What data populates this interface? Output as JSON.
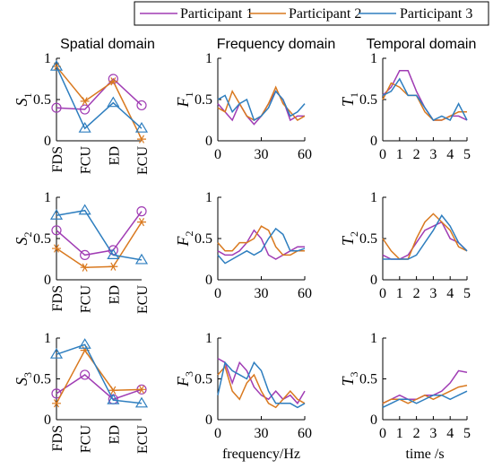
{
  "legend": [
    {
      "name": "Participant 1",
      "color": "#a03cb4",
      "marker": "circle"
    },
    {
      "name": "Participant 2",
      "color": "#d9791f",
      "marker": "star"
    },
    {
      "name": "Participant 3",
      "color": "#2e7ebf",
      "marker": "triangle"
    }
  ],
  "columns": [
    "Spatial domain",
    "Frequency domain",
    "Temporal domain"
  ],
  "chart_data": [
    {
      "type": "line",
      "ylabel": "S",
      "ylabel_sub": "1",
      "categories": [
        "FDS",
        "FCU",
        "ED",
        "ECU"
      ],
      "ylim": [
        0,
        1
      ],
      "yticks": [
        0,
        0.5,
        1
      ],
      "series": [
        {
          "values": [
            0.4,
            0.38,
            0.75,
            0.43
          ]
        },
        {
          "values": [
            0.9,
            0.48,
            0.72,
            0.02
          ]
        },
        {
          "values": [
            0.9,
            0.15,
            0.46,
            0.15
          ]
        }
      ]
    },
    {
      "type": "line",
      "ylabel": "F",
      "ylabel_sub": "1",
      "x": [
        0,
        5,
        10,
        15,
        20,
        25,
        30,
        35,
        40,
        45,
        50,
        55,
        60
      ],
      "xlim": [
        0,
        60
      ],
      "xticks": [
        0,
        30,
        60
      ],
      "ylim": [
        0,
        1
      ],
      "yticks": [
        0,
        0.5,
        1
      ],
      "series": [
        {
          "values": [
            0.45,
            0.35,
            0.25,
            0.45,
            0.3,
            0.2,
            0.3,
            0.45,
            0.6,
            0.5,
            0.25,
            0.3,
            0.3
          ]
        },
        {
          "values": [
            0.4,
            0.35,
            0.6,
            0.45,
            0.3,
            0.25,
            0.3,
            0.45,
            0.65,
            0.45,
            0.35,
            0.25,
            0.3
          ]
        },
        {
          "values": [
            0.5,
            0.55,
            0.35,
            0.45,
            0.5,
            0.25,
            0.3,
            0.4,
            0.6,
            0.5,
            0.3,
            0.35,
            0.45
          ]
        }
      ]
    },
    {
      "type": "line",
      "ylabel": "T",
      "ylabel_sub": "1",
      "x": [
        0,
        0.5,
        1,
        1.5,
        2,
        2.5,
        3,
        3.5,
        4,
        4.5,
        5
      ],
      "xlim": [
        0,
        5
      ],
      "xticks": [
        0,
        1,
        2,
        3,
        4,
        5
      ],
      "ylim": [
        0,
        1
      ],
      "yticks": [
        0,
        0.5,
        1
      ],
      "series": [
        {
          "values": [
            0.55,
            0.65,
            0.85,
            0.85,
            0.6,
            0.4,
            0.25,
            0.25,
            0.3,
            0.3,
            0.25
          ]
        },
        {
          "values": [
            0.5,
            0.7,
            0.65,
            0.55,
            0.55,
            0.35,
            0.25,
            0.25,
            0.3,
            0.35,
            0.35
          ]
        },
        {
          "values": [
            0.55,
            0.6,
            0.75,
            0.55,
            0.55,
            0.4,
            0.25,
            0.3,
            0.25,
            0.45,
            0.25
          ]
        }
      ]
    },
    {
      "type": "line",
      "ylabel": "S",
      "ylabel_sub": "2",
      "categories": [
        "FDS",
        "FCU",
        "ED",
        "ECU"
      ],
      "ylim": [
        0,
        1
      ],
      "yticks": [
        0,
        0.5,
        1
      ],
      "series": [
        {
          "values": [
            0.6,
            0.3,
            0.36,
            0.83
          ]
        },
        {
          "values": [
            0.38,
            0.15,
            0.16,
            0.7
          ]
        },
        {
          "values": [
            0.78,
            0.84,
            0.3,
            0.24
          ]
        }
      ]
    },
    {
      "type": "line",
      "ylabel": "F",
      "ylabel_sub": "2",
      "x": [
        0,
        5,
        10,
        15,
        20,
        25,
        30,
        35,
        40,
        45,
        50,
        55,
        60
      ],
      "xlim": [
        0,
        60
      ],
      "xticks": [
        0,
        30,
        60
      ],
      "ylim": [
        0,
        1
      ],
      "yticks": [
        0,
        0.5,
        1
      ],
      "series": [
        {
          "values": [
            0.35,
            0.3,
            0.3,
            0.35,
            0.45,
            0.6,
            0.5,
            0.3,
            0.25,
            0.3,
            0.35,
            0.4,
            0.4
          ]
        },
        {
          "values": [
            0.45,
            0.35,
            0.35,
            0.45,
            0.45,
            0.5,
            0.65,
            0.6,
            0.4,
            0.3,
            0.3,
            0.35,
            0.35
          ]
        },
        {
          "values": [
            0.3,
            0.2,
            0.25,
            0.3,
            0.35,
            0.3,
            0.35,
            0.5,
            0.62,
            0.55,
            0.35,
            0.35,
            0.38
          ]
        }
      ]
    },
    {
      "type": "line",
      "ylabel": "T",
      "ylabel_sub": "2",
      "x": [
        0,
        0.5,
        1,
        1.5,
        2,
        2.5,
        3,
        3.5,
        4,
        4.5,
        5
      ],
      "xlim": [
        0,
        5
      ],
      "xticks": [
        0,
        1,
        2,
        3,
        4,
        5
      ],
      "ylim": [
        0,
        1
      ],
      "yticks": [
        0,
        0.5,
        1
      ],
      "series": [
        {
          "values": [
            0.3,
            0.25,
            0.25,
            0.3,
            0.45,
            0.6,
            0.65,
            0.7,
            0.5,
            0.45,
            0.35
          ]
        },
        {
          "values": [
            0.5,
            0.35,
            0.25,
            0.25,
            0.5,
            0.7,
            0.8,
            0.7,
            0.6,
            0.4,
            0.35
          ]
        },
        {
          "values": [
            0.25,
            0.25,
            0.25,
            0.25,
            0.3,
            0.45,
            0.6,
            0.78,
            0.65,
            0.45,
            0.35
          ]
        }
      ]
    },
    {
      "type": "line",
      "ylabel": "S",
      "ylabel_sub": "3",
      "categories": [
        "FDS",
        "FCU",
        "ED",
        "ECU"
      ],
      "ylim": [
        0,
        1
      ],
      "yticks": [
        0,
        0.5,
        1
      ],
      "series": [
        {
          "values": [
            0.32,
            0.55,
            0.25,
            0.37
          ]
        },
        {
          "values": [
            0.2,
            0.85,
            0.36,
            0.37
          ]
        },
        {
          "values": [
            0.8,
            0.92,
            0.24,
            0.2
          ]
        }
      ]
    },
    {
      "type": "line",
      "ylabel": "F",
      "ylabel_sub": "3",
      "xlabel": "frequency/Hz",
      "x": [
        0,
        5,
        10,
        15,
        20,
        25,
        30,
        35,
        40,
        45,
        50,
        55,
        60
      ],
      "xlim": [
        0,
        60
      ],
      "xticks": [
        0,
        30,
        60
      ],
      "ylim": [
        0,
        1
      ],
      "yticks": [
        0,
        0.5,
        1
      ],
      "series": [
        {
          "values": [
            0.75,
            0.7,
            0.45,
            0.7,
            0.6,
            0.4,
            0.3,
            0.25,
            0.35,
            0.25,
            0.3,
            0.2,
            0.35
          ]
        },
        {
          "values": [
            0.55,
            0.65,
            0.35,
            0.25,
            0.45,
            0.55,
            0.35,
            0.2,
            0.15,
            0.25,
            0.35,
            0.25,
            0.2
          ]
        },
        {
          "values": [
            0.3,
            0.7,
            0.6,
            0.55,
            0.5,
            0.7,
            0.6,
            0.35,
            0.2,
            0.2,
            0.2,
            0.15,
            0.2
          ]
        }
      ]
    },
    {
      "type": "line",
      "ylabel": "T",
      "ylabel_sub": "3",
      "xlabel": "time /s",
      "x": [
        0,
        0.5,
        1,
        1.5,
        2,
        2.5,
        3,
        3.5,
        4,
        4.5,
        5
      ],
      "xlim": [
        0,
        5
      ],
      "xticks": [
        0,
        1,
        2,
        3,
        4,
        5
      ],
      "ylim": [
        0,
        1
      ],
      "yticks": [
        0,
        0.5,
        1
      ],
      "series": [
        {
          "values": [
            0.2,
            0.25,
            0.3,
            0.25,
            0.25,
            0.3,
            0.3,
            0.35,
            0.45,
            0.6,
            0.58
          ]
        },
        {
          "values": [
            0.2,
            0.25,
            0.25,
            0.2,
            0.25,
            0.3,
            0.25,
            0.3,
            0.35,
            0.4,
            0.42
          ]
        },
        {
          "values": [
            0.15,
            0.2,
            0.25,
            0.25,
            0.2,
            0.25,
            0.3,
            0.3,
            0.25,
            0.3,
            0.35
          ]
        }
      ]
    }
  ]
}
